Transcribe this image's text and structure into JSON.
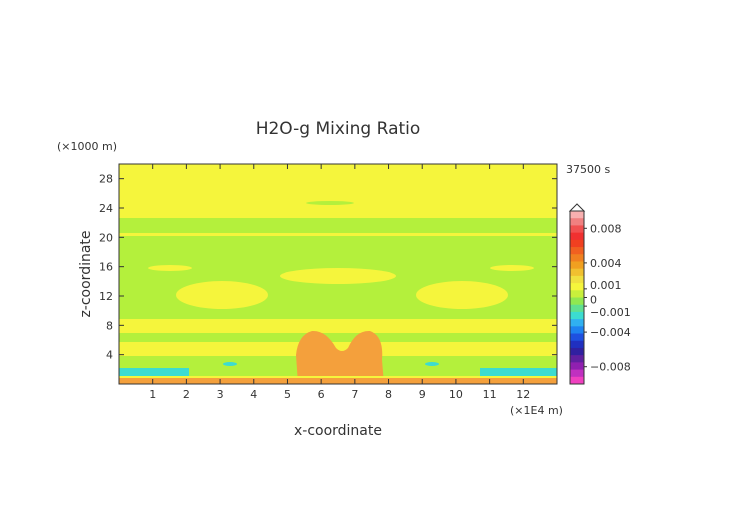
{
  "chart_data": {
    "type": "heatmap",
    "title": "H2O-g Mixing Ratio",
    "time_label": "37500 s",
    "xlabel": "x-coordinate",
    "ylabel": "z-coordinate",
    "x_unit": "(×1E4 m)",
    "y_unit": "(×1000 m)",
    "xlim": [
      0,
      13
    ],
    "ylim": [
      0,
      30
    ],
    "x_ticks": [
      "1",
      "2",
      "3",
      "4",
      "5",
      "6",
      "7",
      "8",
      "9",
      "10",
      "11",
      "12"
    ],
    "y_ticks": [
      "4",
      "8",
      "12",
      "16",
      "20",
      "24",
      "28"
    ],
    "colorbar": {
      "range": [
        -0.01,
        0.01
      ],
      "tick_labels": [
        {
          "label": "0.008",
          "value": 0.008
        },
        {
          "label": "0.004",
          "value": 0.004
        },
        {
          "label": "0.001",
          "value": 0.001
        },
        {
          "label": "0",
          "value": 0
        },
        {
          "label": "−0.001",
          "value": -0.001
        },
        {
          "label": "−0.004",
          "value": -0.004
        },
        {
          "label": "−0.008",
          "value": -0.008
        }
      ]
    },
    "colors": {
      "yellow": "#f5f53c",
      "green": "#b4f03c",
      "orange": "#f4a03c",
      "red": "#f04a28",
      "cyan": "#3cdcd0",
      "blue": "#1e82f0"
    }
  }
}
